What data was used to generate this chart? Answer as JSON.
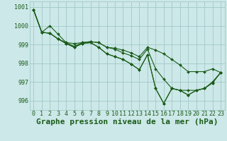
{
  "title": "Graphe pression niveau de la mer (hPa)",
  "background_color": "#cde8e8",
  "plot_bg_color": "#cde8e8",
  "grid_color": "#a0c8c8",
  "line_color": "#1a5c1a",
  "marker_color": "#1a5c1a",
  "xlim": [
    -0.5,
    23.5
  ],
  "ylim": [
    995.5,
    1001.3
  ],
  "yticks": [
    996,
    997,
    998,
    999,
    1000,
    1001
  ],
  "xticks": [
    0,
    1,
    2,
    3,
    4,
    5,
    6,
    7,
    8,
    9,
    10,
    11,
    12,
    13,
    14,
    15,
    16,
    17,
    18,
    19,
    20,
    21,
    22,
    23
  ],
  "series": [
    [
      1000.85,
      999.65,
      1000.0,
      999.55,
      999.1,
      999.05,
      999.1,
      999.15,
      999.1,
      998.85,
      998.8,
      998.7,
      998.55,
      998.35,
      998.85,
      998.7,
      998.5,
      998.2,
      997.9,
      997.55,
      997.55,
      997.55,
      997.7,
      997.5
    ],
    [
      1000.85,
      999.65,
      999.6,
      999.3,
      999.1,
      998.9,
      999.1,
      999.15,
      999.1,
      998.85,
      998.75,
      998.55,
      998.4,
      998.2,
      998.75,
      997.7,
      997.15,
      996.65,
      996.55,
      996.55,
      996.55,
      996.65,
      997.0,
      997.5
    ],
    [
      1000.85,
      999.65,
      999.6,
      999.3,
      999.05,
      998.85,
      999.05,
      999.1,
      998.85,
      998.5,
      998.35,
      998.2,
      997.95,
      997.65,
      998.45,
      996.65,
      995.85,
      996.65,
      996.55,
      996.3,
      996.55,
      996.65,
      996.95,
      997.5
    ],
    [
      1000.85,
      999.65,
      999.6,
      999.3,
      999.05,
      998.85,
      999.05,
      999.1,
      998.85,
      998.5,
      998.35,
      998.2,
      997.95,
      997.65,
      998.45,
      996.65,
      995.85,
      996.65,
      996.55,
      996.3,
      996.55,
      996.65,
      996.95,
      997.5
    ]
  ],
  "title_fontsize": 8,
  "tick_fontsize": 6,
  "markersize": 2.0
}
